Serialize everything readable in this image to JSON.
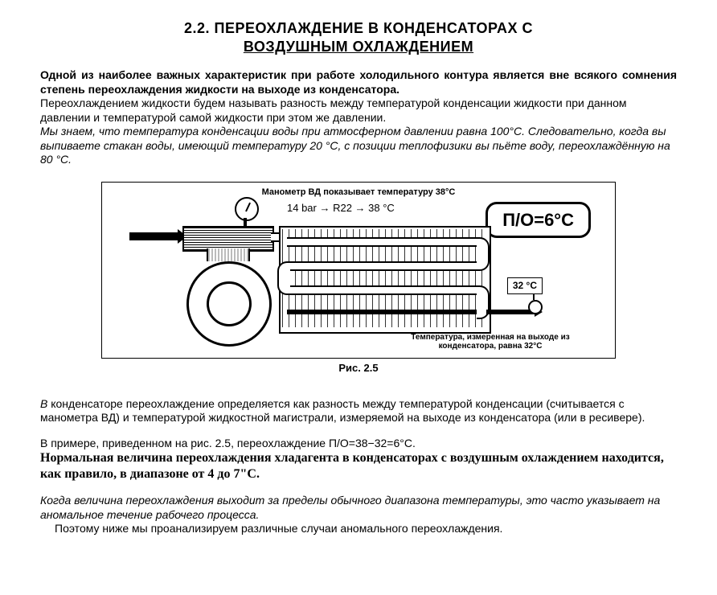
{
  "heading": {
    "line1": "2.2. ПЕРЕОХЛАЖДЕНИЕ В КОНДЕНСАТОРАХ С",
    "line2": "ВОЗДУШНЫМ ОХЛАЖДЕНИЕМ"
  },
  "intro": {
    "p1_bold": "Одной из наиболее важных характеристик при работе холодильного контура является вне всякого сомнения степень переохлаждения жидкости на выходе из конденсатора.",
    "p2": "Переохлаждением жидкости будем называть разность между температурой конденсации жидкости при данном давлении и температурой самой жидкости при этом же давлении.",
    "p3_italic": "Мы знаем, что температура конденсации воды при атмосферном давлении равна 100°С. Следовательно, когда вы выпиваете стакан воды, имеющий температуру 20 °С, с позиции теплофизики вы пьёте воду, переохлаждённую на 80 °С."
  },
  "figure": {
    "top_note": "Манометр ВД показывает температуру 38°С",
    "flow_text": "14 bar  →  R22  →  38 °C",
    "po_box": "П/О=6°С",
    "outlet_temp": "32 °С",
    "outlet_note": "Температура, измеренная на выходе из конденсатора, равна 32°С",
    "caption": "Рис. 2.5",
    "colors": {
      "line": "#000000",
      "bg": "#ffffff"
    },
    "data": {
      "hp_gauge_bar": 14,
      "refrigerant": "R22",
      "condensing_temp_c": 38,
      "outlet_temp_c": 32,
      "subcooling_c": 6
    }
  },
  "body": {
    "p4_italic_lead": "В",
    "p4_rest": " конденсаторе переохлаждение определяется как разность между температурой конденсации (считывается с манометра ВД) и температурой жидкостной магистрали, измеряемой на выходе из конденсатора (или в ресивере).",
    "p5": "В примере, приведенном на рис. 2.5, переохлаждение П/О=38−32=6°С.",
    "p6_serif_bold": "Нормальная величина переохлаждения хладагента в конденсаторах с воздушным охлаждением находится, как правило, в диапазоне от 4 до 7\"С.",
    "p7_italic": "Когда величина переохлаждения выходит за пределы обычного диапазона температуры, это часто указывает на аномальное течение рабочего процесса.",
    "p8": "Поэтому ниже мы проанализируем различные случаи аномального переохлаждения."
  }
}
